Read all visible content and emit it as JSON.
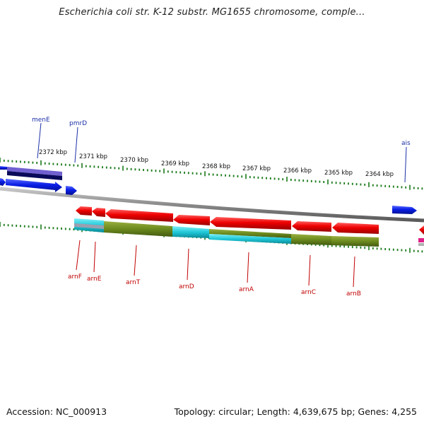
{
  "title": "Escherichia coli str. K-12 substr. MG1655 chromosome, comple...",
  "footer": {
    "accession": "Accession: NC_000913",
    "summary": "Topology: circular; Length: 4,639,675 bp; Genes: 4,255"
  },
  "ticks": [
    "2372 kbp",
    "2371 kbp",
    "2370 kbp",
    "2369 kbp",
    "2368 kbp",
    "2367 kbp",
    "2366 kbp",
    "2365 kbp",
    "2364 kbp"
  ],
  "genes_top": [
    "menE",
    "pmrD",
    "ais"
  ],
  "genes_bottom": [
    "arnF",
    "arnE",
    "arnT",
    "arnD",
    "arnA",
    "arnC",
    "arnB"
  ],
  "colors": {
    "forward_gene": "#0a1ee6",
    "reverse_gene": "#e60000",
    "backbone": "#8a8a8a",
    "gc_track": "#6b8a1e",
    "cds_track": "#20c8d8",
    "tick": "#1a7a1a",
    "label_top": "#1b2fa8",
    "label_bottom": "#c00000"
  }
}
